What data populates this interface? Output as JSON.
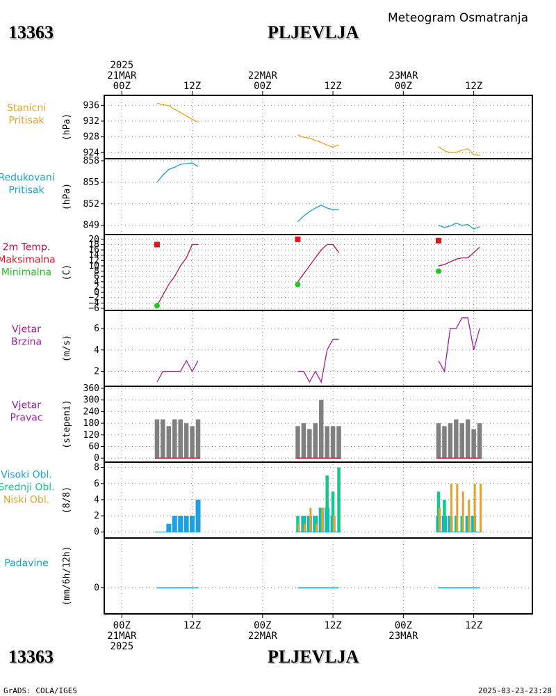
{
  "header": {
    "station_id": "13363",
    "station_name": "PLJEVLJA",
    "product_title": "Meteogram Osmatranja"
  },
  "footer": {
    "credit": "GrADS: COLA/IGES",
    "timestamp": "2025-03-23-23:28"
  },
  "time_axis": {
    "top": [
      {
        "h": 0,
        "lines": [
          "2025",
          "21MAR",
          "00Z"
        ]
      },
      {
        "h": 12,
        "lines": [
          "12Z"
        ]
      },
      {
        "h": 24,
        "lines": [
          "22MAR",
          "00Z"
        ]
      },
      {
        "h": 36,
        "lines": [
          "12Z"
        ]
      },
      {
        "h": 48,
        "lines": [
          "23MAR",
          "00Z"
        ]
      },
      {
        "h": 60,
        "lines": [
          "12Z"
        ]
      }
    ],
    "bottom": [
      {
        "h": 0,
        "lines": [
          "00Z",
          "21MAR",
          "2025"
        ]
      },
      {
        "h": 12,
        "lines": [
          "12Z"
        ]
      },
      {
        "h": 24,
        "lines": [
          "00Z",
          "22MAR"
        ]
      },
      {
        "h": 36,
        "lines": [
          "12Z"
        ]
      },
      {
        "h": 48,
        "lines": [
          "00Z",
          "23MAR"
        ]
      },
      {
        "h": 60,
        "lines": [
          "12Z"
        ]
      }
    ],
    "range_hours": [
      -3,
      70
    ]
  },
  "colors": {
    "pressure": "#e2a32a",
    "reduced_pressure": "#1aa0c8",
    "temp_max": "#e0141e",
    "temp_min": "#1ec81e",
    "temp_line": "#b4124e",
    "wind": "#a01ea0",
    "wind_dir_bar": "#808080",
    "wind_dir_base": "#c03030",
    "cloud_high": "#1aa0e6",
    "cloud_mid": "#14c88c",
    "cloud_low": "#e2a32a",
    "precip": "#1aa0c8"
  },
  "chart_data": [
    {
      "id": "station_pressure",
      "type": "line",
      "label_lines": [
        "Stanicni",
        "Pritisak"
      ],
      "ylabel": "(hPa)",
      "ylim": [
        923,
        938
      ],
      "yticks": [
        924,
        928,
        932,
        936
      ],
      "grid": true,
      "series": [
        {
          "segments": [
            {
              "x": [
                6,
                7,
                8,
                9,
                10,
                11,
                12,
                13
              ],
              "y": [
                936.5,
                936.2,
                935.9,
                935.0,
                934.2,
                933.3,
                932.5,
                931.7
              ]
            },
            {
              "x": [
                30,
                31,
                32,
                33,
                34,
                35,
                36,
                37
              ],
              "y": [
                928.5,
                927.9,
                927.7,
                927.1,
                926.6,
                925.9,
                925.4,
                926.0
              ]
            },
            {
              "x": [
                54,
                55,
                56,
                57,
                58,
                59,
                60,
                61
              ],
              "y": [
                925.5,
                924.5,
                924.0,
                924.1,
                924.6,
                925.0,
                923.5,
                923.3
              ]
            }
          ]
        }
      ]
    },
    {
      "id": "reduced_pressure",
      "type": "line",
      "label_lines": [
        "Redukovani",
        "Pritisak"
      ],
      "ylabel": "(hPa)",
      "ylim": [
        848,
        858
      ],
      "yticks": [
        849,
        852,
        855,
        858
      ],
      "grid": true,
      "series": [
        {
          "segments": [
            {
              "x": [
                6,
                7,
                8,
                9,
                10,
                11,
                12,
                13
              ],
              "y": [
                855.0,
                856.0,
                856.8,
                857.1,
                857.5,
                857.6,
                857.7,
                857.2
              ]
            },
            {
              "x": [
                30,
                31,
                32,
                33,
                34,
                35,
                36,
                37
              ],
              "y": [
                849.5,
                850.3,
                850.9,
                851.4,
                851.8,
                851.4,
                851.2,
                851.2
              ]
            },
            {
              "x": [
                54,
                55,
                56,
                57,
                58,
                59,
                60,
                61
              ],
              "y": [
                849.0,
                848.7,
                848.9,
                849.3,
                849.0,
                849.1,
                848.5,
                848.8
              ]
            }
          ]
        }
      ]
    },
    {
      "id": "temperature",
      "type": "line",
      "label_lines": [
        "2m Temp.",
        "Maksimalna",
        "Minimalna"
      ],
      "ylabel": "(C)",
      "ylim": [
        -6,
        21
      ],
      "yticks": [
        -6,
        -4,
        -2,
        0,
        2,
        4,
        6,
        8,
        10,
        12,
        14,
        16,
        18,
        20
      ],
      "grid": true,
      "max_points": {
        "x": [
          6,
          30,
          54
        ],
        "y": [
          18,
          20,
          19.5
        ]
      },
      "min_points": {
        "x": [
          6,
          30,
          54
        ],
        "y": [
          -5,
          3,
          8
        ]
      },
      "series": [
        {
          "segments": [
            {
              "x": [
                6,
                7,
                8,
                9,
                10,
                11,
                12,
                13
              ],
              "y": [
                -5,
                -1,
                3,
                6,
                10,
                13,
                18,
                18
              ]
            },
            {
              "x": [
                30,
                31,
                32,
                33,
                34,
                35,
                36,
                37
              ],
              "y": [
                4,
                7,
                10,
                13,
                16,
                18,
                18,
                15
              ]
            },
            {
              "x": [
                54,
                55,
                56,
                57,
                58,
                59,
                60,
                61
              ],
              "y": [
                10,
                10.5,
                11.5,
                12.5,
                13,
                13,
                15,
                17
              ]
            }
          ]
        }
      ]
    },
    {
      "id": "wind_speed",
      "type": "line",
      "label_lines": [
        "Vjetar",
        "Brzina"
      ],
      "ylabel": "(m/s)",
      "ylim": [
        0.8,
        7.5
      ],
      "yticks": [
        2,
        4,
        6
      ],
      "grid": true,
      "series": [
        {
          "segments": [
            {
              "x": [
                6,
                7,
                8,
                9,
                10,
                11,
                12,
                13
              ],
              "y": [
                1,
                2,
                2,
                2,
                2,
                3,
                2,
                3
              ]
            },
            {
              "x": [
                30,
                31,
                32,
                33,
                34,
                35,
                36,
                37
              ],
              "y": [
                2,
                2,
                1,
                2,
                1,
                4,
                5,
                5
              ]
            },
            {
              "x": [
                54,
                55,
                56,
                57,
                58,
                59,
                60,
                61
              ],
              "y": [
                3,
                2,
                6,
                6,
                7,
                7,
                4,
                6
              ]
            }
          ]
        }
      ]
    },
    {
      "id": "wind_direction",
      "type": "bar",
      "label_lines": [
        "Vjetar",
        "Pravac"
      ],
      "ylabel": "(stepeni)",
      "ylim": [
        -10,
        360
      ],
      "yticks": [
        0,
        60,
        120,
        180,
        240,
        300,
        360
      ],
      "grid": true,
      "x": [
        6,
        7,
        8,
        9,
        10,
        11,
        12,
        13,
        30,
        31,
        32,
        33,
        34,
        35,
        36,
        37,
        54,
        55,
        56,
        57,
        58,
        59,
        60,
        61
      ],
      "values": [
        200,
        200,
        165,
        200,
        200,
        180,
        165,
        200,
        165,
        180,
        150,
        180,
        300,
        165,
        165,
        165,
        180,
        165,
        180,
        200,
        180,
        200,
        150,
        180
      ]
    },
    {
      "id": "cloud_cover",
      "type": "bar",
      "label_lines": [
        "Visoki Obl.",
        "Srednji Obl.",
        "Niski Obl."
      ],
      "ylabel": "(8/8)",
      "ylim": [
        -0.5,
        8.4
      ],
      "yticks": [
        0,
        2,
        4,
        6,
        8
      ],
      "grid": true,
      "x": [
        6,
        7,
        8,
        9,
        10,
        11,
        12,
        13,
        30,
        31,
        32,
        33,
        34,
        35,
        36,
        37,
        54,
        55,
        56,
        57,
        58,
        59,
        60,
        61
      ],
      "series": [
        {
          "name": "Visoki Obl.",
          "values": [
            0,
            0,
            1,
            2,
            2,
            2,
            2,
            4,
            0,
            2,
            2,
            2,
            3,
            3,
            2,
            0,
            2,
            2,
            2,
            0,
            0,
            2,
            2,
            0
          ]
        },
        {
          "name": "Srednji Obl.",
          "values": [
            0,
            0,
            0,
            0,
            0,
            0,
            0,
            0,
            2,
            2,
            2,
            2,
            3,
            7,
            5,
            8,
            5,
            4,
            2,
            2,
            2,
            2,
            2,
            0
          ]
        },
        {
          "name": "Niski Obl.",
          "values": [
            0,
            0,
            0,
            0,
            0,
            0,
            0,
            0,
            1,
            1,
            3,
            1,
            3,
            0,
            2,
            0,
            3,
            0,
            6,
            6,
            5,
            4,
            6,
            6
          ]
        }
      ]
    },
    {
      "id": "precipitation",
      "type": "line",
      "label_lines": [
        "Padavine"
      ],
      "ylabel": "(mm/6h/12h)",
      "ylim": [
        -2,
        4
      ],
      "yticks": [
        0
      ],
      "grid": true,
      "series": [
        {
          "segments": [
            {
              "x": [
                6,
                13
              ],
              "y": [
                0,
                0
              ]
            },
            {
              "x": [
                30,
                37
              ],
              "y": [
                0,
                0
              ]
            },
            {
              "x": [
                54,
                61
              ],
              "y": [
                0,
                0
              ]
            }
          ]
        }
      ]
    }
  ]
}
